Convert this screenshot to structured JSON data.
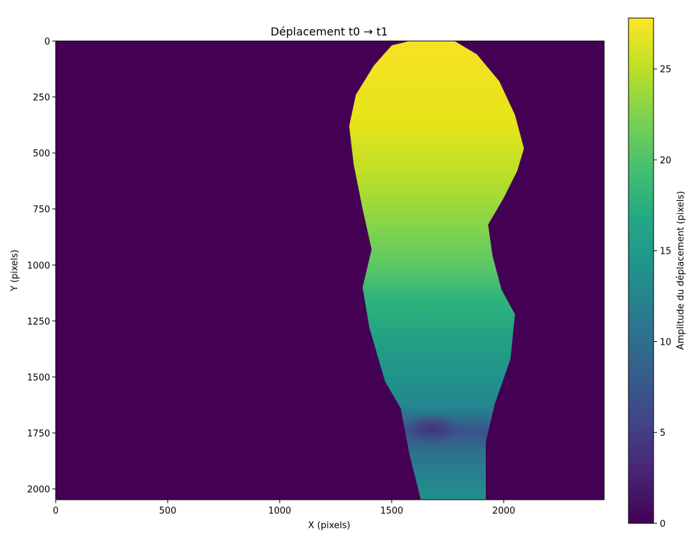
{
  "chart_data": {
    "type": "heatmap",
    "title": "Déplacement t0 → t1",
    "xlabel": "X (pixels)",
    "ylabel": "Y (pixels)",
    "xlim": [
      0,
      2448
    ],
    "ylim": [
      2048,
      0
    ],
    "x_ticks": [
      0,
      500,
      1000,
      1500,
      2000
    ],
    "x_tick_labels": [
      "0",
      "500",
      "1000",
      "1500",
      "2000"
    ],
    "y_ticks": [
      0,
      250,
      500,
      750,
      1000,
      1250,
      1500,
      1750,
      2000
    ],
    "y_tick_labels": [
      "0",
      "250",
      "500",
      "750",
      "1000",
      "1250",
      "1500",
      "1750",
      "2000"
    ],
    "y_inverted": true,
    "colormap": "viridis",
    "colorbar": {
      "label": "Amplitude du déplacement (pixels)",
      "range": [
        0,
        27.8
      ],
      "ticks": [
        0,
        5,
        10,
        15,
        20,
        25
      ],
      "tick_labels": [
        "0",
        "5",
        "10",
        "15",
        "20",
        "25"
      ]
    },
    "background_value": 0,
    "region_outline": {
      "description": "non-zero displacement region; outline points as [x, y] in data pixels",
      "points": [
        [
          1500,
          20
        ],
        [
          1580,
          0
        ],
        [
          1780,
          0
        ],
        [
          1880,
          60
        ],
        [
          1980,
          180
        ],
        [
          2050,
          330
        ],
        [
          2090,
          480
        ],
        [
          2060,
          580
        ],
        [
          2000,
          700
        ],
        [
          1930,
          820
        ],
        [
          1950,
          960
        ],
        [
          1990,
          1110
        ],
        [
          2050,
          1220
        ],
        [
          2030,
          1420
        ],
        [
          1960,
          1620
        ],
        [
          1920,
          1790
        ],
        [
          1920,
          2048
        ],
        [
          1630,
          2048
        ],
        [
          1580,
          1850
        ],
        [
          1540,
          1640
        ],
        [
          1470,
          1520
        ],
        [
          1400,
          1280
        ],
        [
          1370,
          1100
        ],
        [
          1410,
          930
        ],
        [
          1370,
          750
        ],
        [
          1330,
          550
        ],
        [
          1310,
          380
        ],
        [
          1340,
          240
        ],
        [
          1420,
          110
        ]
      ]
    },
    "value_profile": {
      "description": "approximate displacement amplitude along the vertical axis of the region",
      "y": [
        0,
        200,
        400,
        600,
        800,
        1000,
        1100,
        1300,
        1500,
        1650,
        1730,
        1850,
        2048
      ],
      "values": [
        27,
        27.5,
        27,
        24.5,
        22.5,
        20,
        17,
        15,
        14,
        12,
        6,
        12,
        11
      ]
    },
    "grid": false,
    "legend": "none"
  }
}
